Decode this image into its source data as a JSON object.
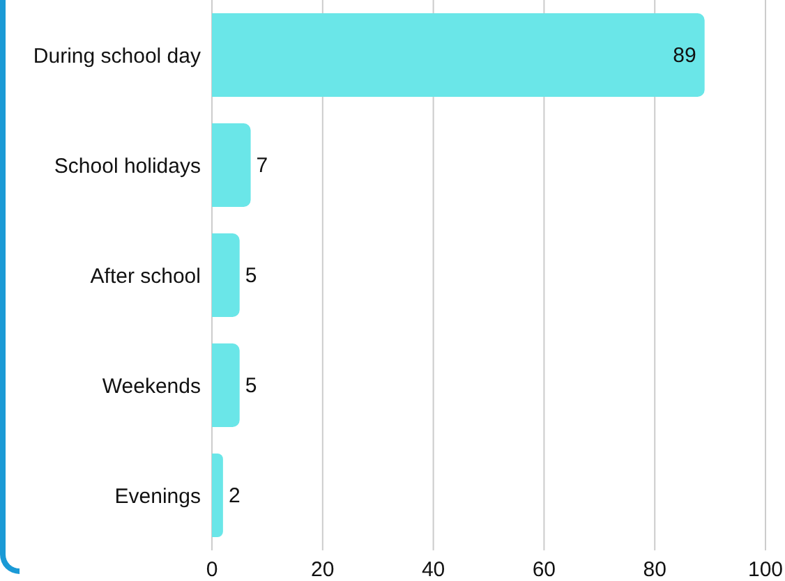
{
  "chart_data": {
    "type": "bar",
    "orientation": "horizontal",
    "categories": [
      "During school day",
      "School holidays",
      "After school",
      "Weekends",
      "Evenings"
    ],
    "values": [
      89,
      7,
      5,
      5,
      2
    ],
    "color": "#6ae6e8",
    "xlim": [
      0,
      100
    ],
    "xticks": [
      0,
      20,
      40,
      60,
      80,
      100
    ],
    "grid": "x",
    "data_labels": true
  }
}
